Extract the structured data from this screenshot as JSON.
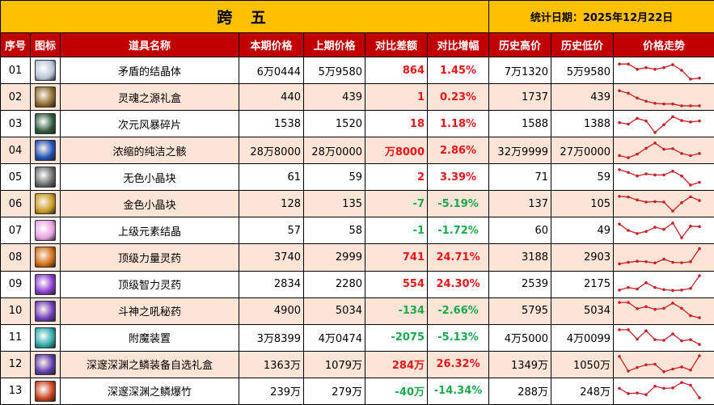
{
  "title": "跨 五",
  "date": "统计日期：2025年12月22日",
  "headers": [
    "序号",
    "图标",
    "道具名称",
    "本期价格",
    "上期价格",
    "对比差额",
    "对比增幅",
    "历史高价",
    "历史低价",
    "价格走势"
  ],
  "colors": {
    "title_bg": "#FFC000",
    "header_bg": "#C00000",
    "alt_row": "#FCE4D6",
    "up": "#E8141C",
    "down": "#1EA84E",
    "spark": "#C8202A"
  },
  "rows": [
    {
      "no": "01",
      "icon": "crystal-icon",
      "icon_color": "#b8c4d8",
      "name": "矛盾的结晶体",
      "cur": "6万0444",
      "prev": "5万9580",
      "diff": "864",
      "pct": "1.45%",
      "dir": "up",
      "high": "7万1320",
      "low": "5万9580",
      "trend": [
        80,
        80,
        55,
        63,
        55,
        63,
        77,
        50,
        8,
        13
      ]
    },
    {
      "no": "02",
      "icon": "gift-box-icon",
      "icon_color": "#8a6a2a",
      "name": "灵魂之源礼盒",
      "cur": "440",
      "prev": "439",
      "diff": "1",
      "pct": "0.23%",
      "dir": "up",
      "high": "1737",
      "low": "439",
      "trend": [
        80,
        68,
        45,
        30,
        20,
        17,
        17,
        8,
        8,
        8
      ]
    },
    {
      "no": "03",
      "icon": "shard-icon",
      "icon_color": "#2f5a3a",
      "name": "次元风暴碎片",
      "cur": "1538",
      "prev": "1520",
      "diff": "18",
      "pct": "1.18%",
      "dir": "up",
      "high": "1588",
      "low": "1388",
      "trend": [
        55,
        48,
        75,
        63,
        8,
        45,
        83,
        65,
        58,
        63
      ]
    },
    {
      "no": "04",
      "icon": "orb-icon",
      "icon_color": "#1f4fb8",
      "name": "浓缩的纯洁之骸",
      "cur": "28万8000",
      "prev": "28万0000",
      "diff": "万8000",
      "pct": "2.86%",
      "dir": "up",
      "high": "32万9999",
      "low": "27万0000",
      "trend": [
        25,
        15,
        32,
        60,
        85,
        55,
        58,
        35,
        25,
        35
      ]
    },
    {
      "no": "05",
      "icon": "cube-gray-icon",
      "icon_color": "#6a6a6a",
      "name": "无色小晶块",
      "cur": "61",
      "prev": "59",
      "diff": "2",
      "pct": "3.39%",
      "dir": "up",
      "high": "71",
      "low": "59",
      "trend": [
        85,
        72,
        55,
        65,
        60,
        60,
        78,
        55,
        12,
        25
      ]
    },
    {
      "no": "06",
      "icon": "cube-gold-icon",
      "icon_color": "#c89a20",
      "name": "金色小晶块",
      "cur": "128",
      "prev": "135",
      "diff": "-7",
      "pct": "-5.19%",
      "dir": "down",
      "high": "137",
      "low": "105",
      "trend": [
        85,
        82,
        68,
        58,
        60,
        58,
        15,
        55,
        83,
        65
      ]
    },
    {
      "no": "07",
      "icon": "element-crystal-icon",
      "icon_color": "#e8a0e0",
      "name": "上级元素结晶",
      "cur": "57",
      "prev": "58",
      "diff": "-1",
      "pct": "-1.72%",
      "dir": "down",
      "high": "60",
      "low": "49",
      "trend": [
        80,
        50,
        35,
        45,
        65,
        55,
        85,
        15,
        70,
        68
      ]
    },
    {
      "no": "08",
      "icon": "potion-red-icon",
      "icon_color": "#d06a10",
      "name": "顶级力量灵药",
      "cur": "3740",
      "prev": "2999",
      "diff": "741",
      "pct": "24.71%",
      "dir": "up",
      "high": "3188",
      "low": "2903",
      "trend": [
        18,
        25,
        30,
        28,
        22,
        40,
        25,
        23,
        28,
        90
      ]
    },
    {
      "no": "09",
      "icon": "potion-purple-icon",
      "icon_color": "#8a3ac8",
      "name": "顶级智力灵药",
      "cur": "2834",
      "prev": "2280",
      "diff": "554",
      "pct": "24.30%",
      "dir": "up",
      "high": "2539",
      "low": "2175",
      "trend": [
        20,
        32,
        25,
        55,
        32,
        22,
        18,
        20,
        28,
        88
      ]
    },
    {
      "no": "10",
      "icon": "potion-violet-icon",
      "icon_color": "#6a3ab8",
      "name": "斗神之吼秘药",
      "cur": "4900",
      "prev": "5034",
      "diff": "-134",
      "pct": "-2.66%",
      "dir": "down",
      "high": "5795",
      "low": "5034",
      "trend": [
        88,
        88,
        58,
        68,
        55,
        60,
        85,
        60,
        25,
        15
      ]
    },
    {
      "no": "11",
      "icon": "device-icon",
      "icon_color": "#2aa8a8",
      "name": "附魔装置",
      "cur": "3万8399",
      "prev": "4万0474",
      "diff": "-2075",
      "pct": "-5.13%",
      "dir": "down",
      "high": "4万5000",
      "low": "4万0099",
      "trend": [
        85,
        85,
        40,
        80,
        38,
        35,
        65,
        32,
        38,
        15
      ]
    },
    {
      "no": "12",
      "icon": "chest-icon",
      "icon_color": "#5a3aa8",
      "name": "深邃深渊之鳞装备自选礼盒",
      "cur": "1363万",
      "prev": "1079万",
      "diff": "284万",
      "pct": "26.32%",
      "dir": "up",
      "high": "1349万",
      "low": "1050万",
      "trend": [
        85,
        15,
        32,
        45,
        48,
        12,
        25,
        35,
        20,
        88
      ]
    },
    {
      "no": "13",
      "icon": "firecracker-icon",
      "icon_color": "#c8401a",
      "name": "深邃深渊之鳞爆竹",
      "cur": "239万",
      "prev": "279万",
      "diff": "-40万",
      "pct": "-14.34%",
      "dir": "down",
      "high": "288万",
      "low": "248万",
      "trend": [
        60,
        35,
        38,
        30,
        70,
        60,
        62,
        88,
        75,
        15
      ]
    }
  ]
}
